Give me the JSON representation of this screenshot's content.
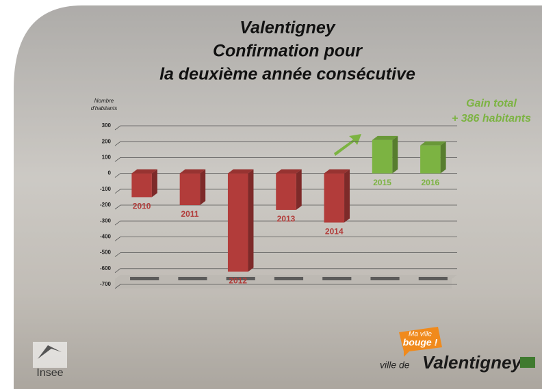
{
  "chart_data": {
    "type": "bar3d",
    "title_lines": [
      "Valentigney",
      "Confirmation pour",
      "la deuxième année consécutive"
    ],
    "y_label_lines": [
      "Nombre",
      "d'habitants"
    ],
    "categories": [
      "2010",
      "2011",
      "2012",
      "2013",
      "2014",
      "2015",
      "2016"
    ],
    "values": [
      -150,
      -200,
      -620,
      -230,
      -310,
      210,
      176
    ],
    "colors": [
      "#b23c3a",
      "#b23c3a",
      "#b23c3a",
      "#b23c3a",
      "#b23c3a",
      "#7cb342",
      "#7cb342"
    ],
    "ylim": [
      -700,
      300
    ],
    "yticks": [
      300,
      200,
      100,
      0,
      -100,
      -200,
      -300,
      -400,
      -500,
      -600,
      -700
    ],
    "grid": true,
    "annotation_lines": [
      "Gain total",
      "+ 386 habitants"
    ]
  },
  "logos": {
    "insee": "Insee",
    "slogan_lines": [
      "Ma ville",
      "bouge !"
    ],
    "ville_prefix": "ville de",
    "ville_name": "Valentigney"
  }
}
